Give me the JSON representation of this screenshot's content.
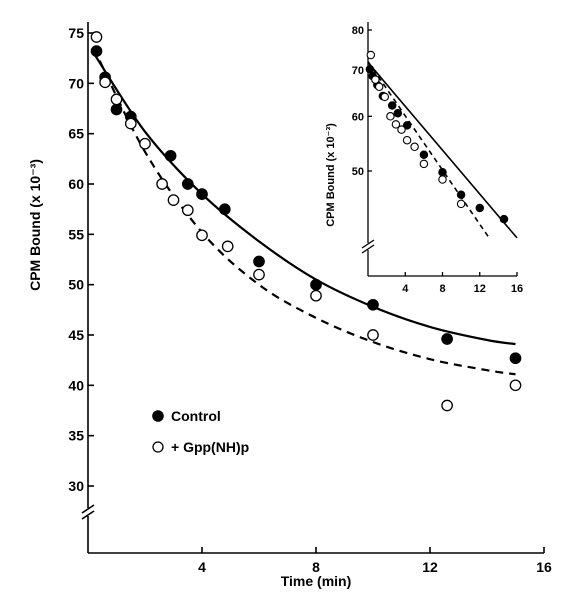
{
  "chart_data": [
    {
      "type": "scatter",
      "xlabel": "Time (min)",
      "ylabel": "CPM Bound (x 10⁻³)",
      "xlim": [
        0,
        16
      ],
      "ylim": [
        30,
        75
      ],
      "axis_break": "y",
      "x_ticks": [
        4,
        8,
        12,
        16
      ],
      "y_ticks": [
        30,
        35,
        40,
        45,
        50,
        55,
        60,
        65,
        70,
        75
      ],
      "x_tick_labels": [
        "4",
        "8",
        "12",
        "16"
      ],
      "y_tick_labels": [
        "30",
        "35",
        "40",
        "45",
        "50",
        "55",
        "60",
        "65",
        "70",
        "75"
      ],
      "legend_position": "bottom-left",
      "series": [
        {
          "name": "Control",
          "marker": "filled-circle",
          "line": "solid",
          "x": [
            0.3,
            0.6,
            1.0,
            1.5,
            2.9,
            3.5,
            4.0,
            4.8,
            6.0,
            8.0,
            10.0,
            12.6,
            15.0
          ],
          "y": [
            73.2,
            70.6,
            67.4,
            66.7,
            62.8,
            60.0,
            59.0,
            57.5,
            52.3,
            50.0,
            48.0,
            44.6,
            42.7
          ],
          "fit": {
            "x": [
              0.2,
              2,
              4,
              6,
              8,
              10,
              12,
              14,
              15
            ],
            "y": [
              73.0,
              65.2,
              59.0,
              54.3,
              50.5,
              47.8,
              45.8,
              44.5,
              44.1
            ]
          }
        },
        {
          "name": "+ Gpp(NH)p",
          "marker": "open-circle",
          "line": "dashed",
          "x": [
            0.3,
            0.6,
            1.0,
            1.5,
            2.0,
            2.6,
            3.0,
            3.5,
            4.0,
            4.9,
            6.0,
            8.0,
            10.0,
            12.6,
            15.0
          ],
          "y": [
            74.6,
            70.1,
            68.4,
            66.0,
            64.0,
            60.0,
            58.4,
            57.4,
            54.9,
            53.8,
            51.0,
            48.9,
            45.0,
            38.0,
            40.0
          ],
          "fit": {
            "x": [
              0.2,
              2,
              4,
              6,
              8,
              10,
              12,
              14,
              15
            ],
            "y": [
              73.5,
              63.2,
              55.2,
              50.0,
              46.7,
              44.3,
              42.6,
              41.5,
              41.1
            ]
          }
        }
      ]
    },
    {
      "type": "scatter",
      "xlabel": "",
      "ylabel": "CPM Bound (x 10⁻³)",
      "xlim": [
        0,
        16
      ],
      "ylim": [
        40,
        80
      ],
      "scale": "log",
      "axis_break": "y",
      "x_ticks": [
        4,
        8,
        12,
        16
      ],
      "y_ticks": [
        50,
        60,
        70,
        80
      ],
      "x_tick_labels": [
        "4",
        "8",
        "12",
        "16"
      ],
      "y_tick_labels": [
        "50",
        "60",
        "70",
        "80"
      ],
      "series": [
        {
          "name": "Control",
          "marker": "filled-circle",
          "line": "solid",
          "x": [
            0.2,
            0.5,
            1.0,
            1.6,
            2.6,
            3.2,
            4.2,
            6.0,
            8.0,
            10.0,
            12.0,
            14.6
          ],
          "y": [
            70.2,
            68.6,
            66.6,
            64.2,
            62.2,
            60.6,
            58.2,
            52.8,
            49.8,
            46.2,
            44.2,
            42.6
          ],
          "fit": {
            "x": [
              0,
              16
            ],
            "y": [
              71.8,
              40.0
            ]
          }
        },
        {
          "name": "+ Gpp(NH)p",
          "marker": "open-circle",
          "line": "dashed",
          "x": [
            0.3,
            0.8,
            1.2,
            1.8,
            2.4,
            3.0,
            3.6,
            4.2,
            5.0,
            6.0,
            8.0,
            10.0
          ],
          "y": [
            73.6,
            67.8,
            66.2,
            64.0,
            60.0,
            58.4,
            57.4,
            55.4,
            54.2,
            51.2,
            48.6,
            44.8
          ],
          "fit": {
            "x": [
              0,
              13
            ],
            "y": [
              72.0,
              40.0
            ]
          }
        }
      ]
    }
  ]
}
